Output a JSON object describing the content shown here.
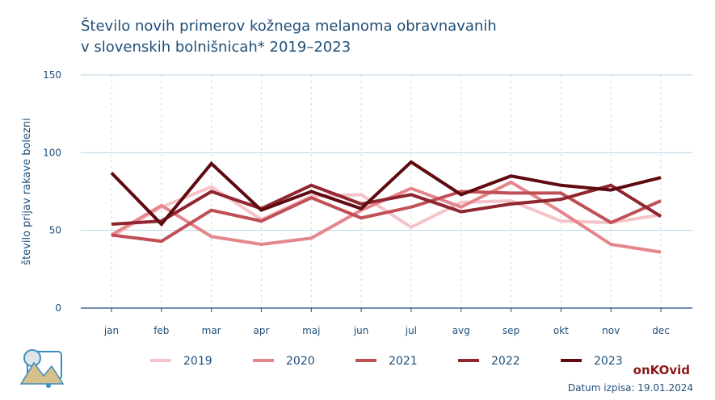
{
  "header": {
    "title_line1": "Število novih primerov kožnega melanoma obravnavanih",
    "title_line2": "v slovenskih bolnišnicah* 2019–2023"
  },
  "footer": {
    "brand": "onKOvid",
    "date": "Datum izpisa: 19.01.2024"
  },
  "colors": {
    "2019": "#f6c3c8",
    "2020": "#e4868c",
    "2021": "#c05056",
    "2022": "#8f2630",
    "2023": "#5e0a10",
    "axis_text": "#1f4e79",
    "grid": "#b9d5e3"
  },
  "chart_data": {
    "type": "line",
    "title": "Število novih primerov kožnega melanoma obravnavanih v slovenskih bolnišnicah* 2019–2023",
    "xlabel": "",
    "ylabel": "število prijav rakave bolezni",
    "ylim": [
      0,
      150
    ],
    "yticks": [
      0,
      50,
      100,
      150
    ],
    "grid": true,
    "legend": "bottom",
    "categories": [
      "jan",
      "feb",
      "mar",
      "apr",
      "maj",
      "jun",
      "jul",
      "avg",
      "sep",
      "okt",
      "nov",
      "dec"
    ],
    "series": [
      {
        "name": "2019",
        "values": [
          46,
          65,
          78,
          57,
          72,
          73,
          52,
          68,
          69,
          56,
          55,
          60
        ]
      },
      {
        "name": "2020",
        "values": [
          47,
          66,
          46,
          41,
          45,
          63,
          77,
          65,
          81,
          62,
          41,
          36
        ]
      },
      {
        "name": "2021",
        "values": [
          47,
          43,
          63,
          56,
          71,
          58,
          65,
          75,
          74,
          74,
          55,
          69
        ]
      },
      {
        "name": "2022",
        "values": [
          54,
          56,
          75,
          64,
          79,
          67,
          73,
          62,
          67,
          70,
          79,
          59
        ]
      },
      {
        "name": "2023",
        "values": [
          87,
          54,
          93,
          63,
          75,
          64,
          94,
          73,
          85,
          79,
          76,
          84
        ]
      }
    ]
  }
}
